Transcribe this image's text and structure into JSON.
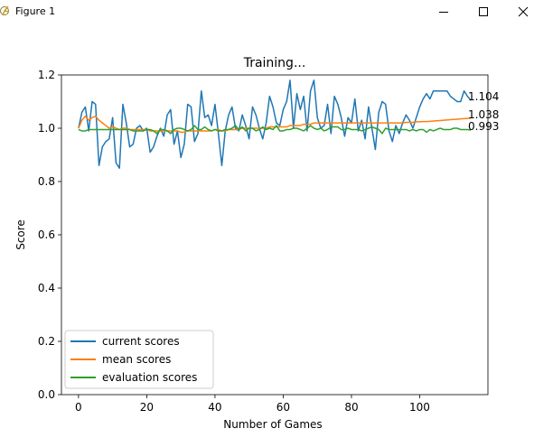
{
  "window": {
    "title": "Figure 1",
    "icon": "matplotlib-figure-icon",
    "controls": [
      "minimize-icon",
      "maximize-icon",
      "close-icon"
    ]
  },
  "chart_data": {
    "type": "line",
    "title": "Training...",
    "xlabel": "Number of Games",
    "ylabel": "Score",
    "xlim": [
      -5,
      120
    ],
    "ylim": [
      0.0,
      1.2
    ],
    "xticks": [
      0,
      20,
      40,
      60,
      80,
      100
    ],
    "yticks": [
      0.0,
      0.2,
      0.4,
      0.6,
      0.8,
      1.0,
      1.2
    ],
    "xtick_labels": [
      "0",
      "20",
      "40",
      "60",
      "80",
      "100"
    ],
    "ytick_labels": [
      "0.0",
      "0.2",
      "0.4",
      "0.6",
      "0.8",
      "1.0",
      "1.2"
    ],
    "grid": false,
    "legend_position": "lower-left",
    "series": [
      {
        "name": "current scores",
        "color": "#1f77b4",
        "values": [
          1.0,
          1.06,
          1.08,
          0.99,
          1.1,
          1.09,
          0.86,
          0.93,
          0.95,
          0.96,
          1.04,
          0.87,
          0.85,
          1.09,
          1.02,
          0.93,
          0.94,
          1.0,
          1.01,
          0.99,
          1.0,
          0.91,
          0.93,
          0.97,
          1.0,
          0.97,
          1.05,
          1.07,
          0.94,
          0.99,
          0.89,
          0.94,
          1.09,
          1.08,
          0.95,
          0.98,
          1.14,
          1.04,
          1.05,
          1.01,
          1.09,
          0.98,
          0.86,
          0.99,
          1.05,
          1.08,
          1.0,
          0.99,
          1.05,
          1.01,
          0.96,
          1.08,
          1.05,
          1.0,
          0.96,
          1.02,
          1.12,
          1.08,
          1.02,
          1.01,
          1.07,
          1.1,
          1.18,
          1.0,
          1.13,
          1.07,
          1.12,
          0.99,
          1.14,
          1.18,
          1.04,
          1.0,
          1.01,
          1.09,
          0.98,
          1.12,
          1.09,
          1.04,
          0.97,
          1.04,
          1.02,
          1.11,
          0.99,
          1.03,
          0.96,
          1.08,
          1.0,
          0.92,
          1.06,
          1.1,
          1.09,
          0.99,
          0.95,
          1.01,
          0.98,
          1.02,
          1.05,
          1.03,
          1.0,
          1.04,
          1.08,
          1.11,
          1.13,
          1.11,
          1.14,
          1.14,
          1.14,
          1.14,
          1.14,
          1.12,
          1.11,
          1.1,
          1.1,
          1.14,
          1.12,
          1.104
        ]
      },
      {
        "name": "mean scores",
        "color": "#ff7f0e",
        "values": [
          1.0,
          1.03,
          1.045,
          1.03,
          1.04,
          1.045,
          1.03,
          1.02,
          1.01,
          1.0,
          1.005,
          1.0,
          0.995,
          1.0,
          1.0,
          0.995,
          0.995,
          0.995,
          0.995,
          0.995,
          0.995,
          0.99,
          0.99,
          0.99,
          0.99,
          0.99,
          0.99,
          0.99,
          0.99,
          0.99,
          0.985,
          0.985,
          0.99,
          0.99,
          0.99,
          0.99,
          0.99,
          0.99,
          0.99,
          0.99,
          0.995,
          0.995,
          0.99,
          0.99,
          0.995,
          0.995,
          0.995,
          0.995,
          1.0,
          1.0,
          1.0,
          1.0,
          1.0,
          1.0,
          1.0,
          1.0,
          1.005,
          1.005,
          1.005,
          1.005,
          1.005,
          1.005,
          1.01,
          1.01,
          1.01,
          1.01,
          1.015,
          1.015,
          1.015,
          1.02,
          1.02,
          1.02,
          1.02,
          1.02,
          1.02,
          1.02,
          1.02,
          1.02,
          1.02,
          1.02,
          1.02,
          1.02,
          1.02,
          1.02,
          1.02,
          1.02,
          1.02,
          1.02,
          1.02,
          1.02,
          1.02,
          1.02,
          1.02,
          1.02,
          1.02,
          1.02,
          1.022,
          1.022,
          1.022,
          1.024,
          1.024,
          1.025,
          1.025,
          1.026,
          1.027,
          1.028,
          1.029,
          1.03,
          1.031,
          1.032,
          1.033,
          1.034,
          1.035,
          1.036,
          1.037,
          1.038
        ]
      },
      {
        "name": "evaluation scores",
        "color": "#2ca02c",
        "values": [
          0.995,
          0.99,
          0.99,
          0.995,
          0.995,
          0.995,
          0.995,
          0.995,
          0.995,
          0.995,
          0.995,
          0.995,
          0.995,
          0.995,
          0.995,
          0.995,
          0.99,
          0.99,
          0.99,
          0.99,
          0.995,
          0.995,
          0.99,
          0.98,
          0.995,
          0.995,
          0.99,
          0.98,
          0.995,
          1.0,
          1.0,
          0.995,
          0.99,
          0.995,
          1.01,
          0.995,
          0.995,
          1.005,
          0.995,
          0.99,
          0.995,
          0.99,
          0.99,
          0.995,
          0.995,
          1.0,
          1.01,
          0.995,
          1.005,
          0.99,
          1.0,
          1.0,
          0.99,
          0.995,
          1.005,
          0.995,
          1.0,
          0.995,
          1.01,
          0.99,
          0.99,
          0.995,
          0.995,
          1.0,
          1.0,
          0.995,
          0.99,
          1.0,
          1.01,
          1.0,
          0.995,
          1.0,
          0.99,
          0.995,
          1.005,
          1.005,
          1.005,
          0.995,
          0.995,
          1.0,
          0.995,
          0.995,
          0.995,
          0.99,
          0.995,
          1.0,
          1.005,
          1.0,
          0.995,
          0.98,
          1.0,
          0.995,
          0.995,
          0.995,
          0.995,
          0.995,
          0.995,
          0.99,
          0.995,
          0.99,
          0.995,
          0.995,
          0.985,
          0.995,
          0.99,
          0.995,
          1.0,
          0.995,
          0.995,
          0.995,
          1.0,
          1.0,
          0.995,
          0.995,
          0.995,
          0.993
        ]
      }
    ],
    "end_labels": [
      "1.104",
      "1.038",
      "0.993"
    ]
  }
}
